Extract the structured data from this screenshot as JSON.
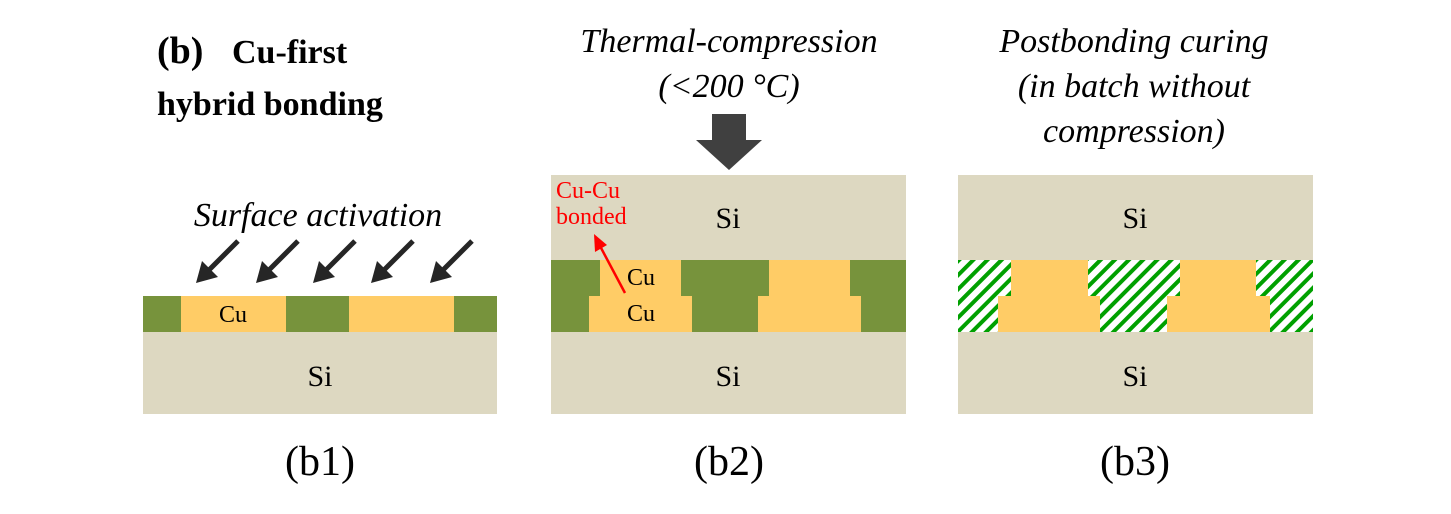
{
  "header": {
    "letter": "(b)",
    "line1": "Cu-first",
    "line2": "hybrid bonding"
  },
  "panels": {
    "b1": {
      "caption": "(b1)",
      "process": "Surface activation",
      "cu_label": "Cu",
      "si_label": "Si"
    },
    "b2": {
      "caption": "(b2)",
      "process_line1": "Thermal-compression",
      "process_line2": "(<200 °C)",
      "top_si_label": "Si",
      "bottom_si_label": "Si",
      "top_cu_label": "Cu",
      "bottom_cu_label": "Cu",
      "annotation_line1": "Cu-Cu",
      "annotation_line2": "bonded"
    },
    "b3": {
      "caption": "(b3)",
      "process_line1": "Postbonding curing",
      "process_line2": "(in batch without",
      "process_line3": "compression)",
      "top_si_label": "Si",
      "bottom_si_label": "Si"
    }
  },
  "colors": {
    "silicon": "#ddd8c1",
    "dielectric": "#77933c",
    "copper": "#ffcc66",
    "arrow": "#262626",
    "hatch": "#00a000",
    "annotation": "#ff0000"
  }
}
